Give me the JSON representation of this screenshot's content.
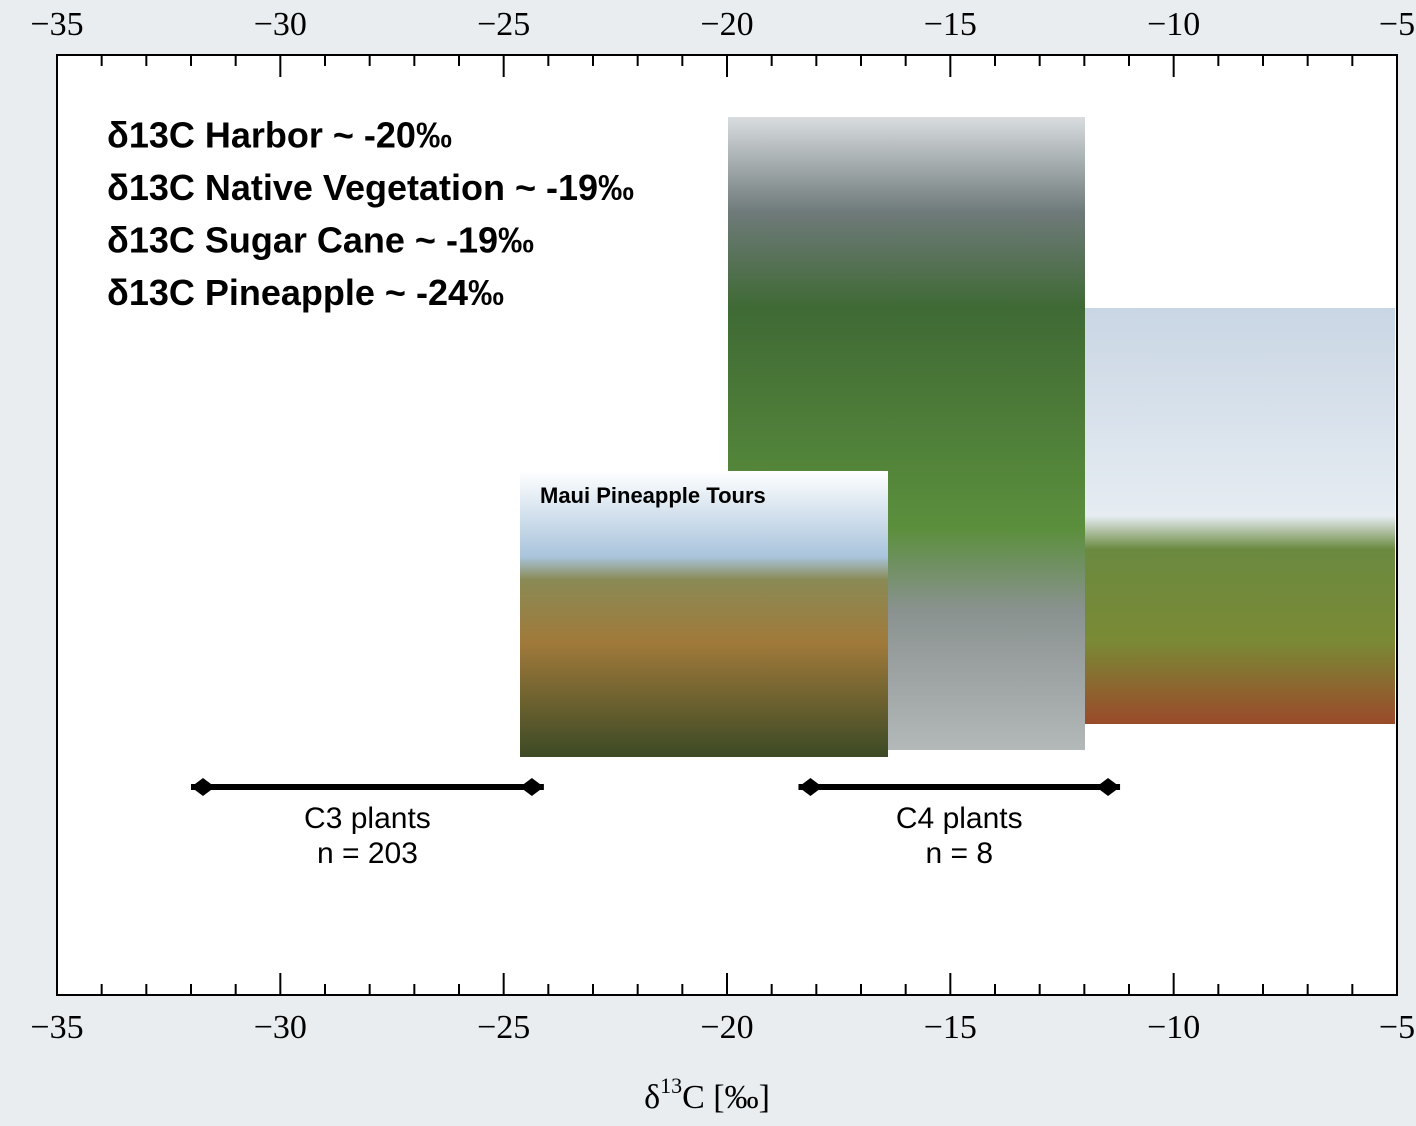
{
  "chart_data": {
    "type": "range",
    "xlim": [
      -35,
      -5
    ],
    "xticks": [
      {
        "value": -35,
        "label": "−35"
      },
      {
        "value": -30,
        "label": "−30"
      },
      {
        "value": -25,
        "label": "−25"
      },
      {
        "value": -20,
        "label": "−20"
      },
      {
        "value": -15,
        "label": "−15"
      },
      {
        "value": -10,
        "label": "−10"
      },
      {
        "value": -5,
        "label": "−5"
      }
    ],
    "xminorticks": [
      -34,
      -33,
      -32,
      -31,
      -29,
      -28,
      -27,
      -26,
      -24,
      -23,
      -22,
      -21,
      -19,
      -18,
      -17,
      -16,
      -14,
      -13,
      -12,
      -11,
      -9,
      -8,
      -7,
      -6
    ],
    "x_label": {
      "prefix": "δ",
      "sup": "13",
      "suffix": "C [‰]"
    },
    "color": "#000000",
    "series": [
      {
        "name": "C3 plants",
        "n_label": "n = 203",
        "low": -32,
        "high": -24.1
      },
      {
        "name": "C4 plants",
        "n_label": "n = 8",
        "low": -18.4,
        "high": -11.2
      }
    ],
    "annotations": [
      "δ13C Harbor ~ -20‰",
      "δ13C Native Vegetation ~ -19‰",
      "δ13C Sugar Cane ~ -19‰",
      "δ13C Pineapple ~ -24‰"
    ],
    "photo_caption": "Maui Pineapple Tours"
  }
}
